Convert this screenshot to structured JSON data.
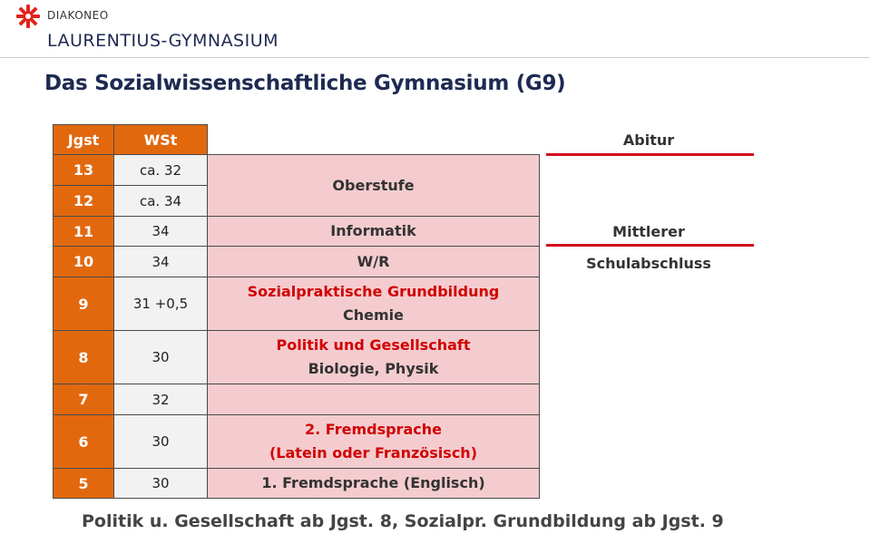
{
  "header": {
    "brand": "DIAKONEO",
    "school": "LAURENTIUS-GYMNASIUM",
    "accent_color": "#e2231a"
  },
  "title": "Das Sozialwissenschaftliche Gymnasium (G9)",
  "table": {
    "headers": {
      "jgst": "Jgst",
      "wst": "WSt"
    },
    "rows": [
      {
        "jgst": "13",
        "wst": "ca. 32"
      },
      {
        "jgst": "12",
        "wst": "ca. 34"
      },
      {
        "jgst": "11",
        "wst": "34"
      },
      {
        "jgst": "10",
        "wst": "34"
      },
      {
        "jgst": "9",
        "wst": "31 +0,5"
      },
      {
        "jgst": "8",
        "wst": "30"
      },
      {
        "jgst": "7",
        "wst": "32"
      },
      {
        "jgst": "6",
        "wst": "30"
      },
      {
        "jgst": "5",
        "wst": "30"
      }
    ],
    "subjects": {
      "oberstufe": "Oberstufe",
      "informatik": "Informatik",
      "wr": "W/R",
      "g9_red": "Sozialpraktische Grundbildung",
      "g9_dark": "Chemie",
      "g8_red": "Politik und Gesellschaft",
      "g8_dark": "Biologie, Physik",
      "g6_red1": "2. Fremdsprache",
      "g6_red2": "(Latein oder Französisch)",
      "g5": "1. Fremdsprache (Englisch)"
    }
  },
  "side": {
    "abitur": "Abitur",
    "mittlerer": "Mittlerer",
    "schulabschluss": "Schulabschluss",
    "line_color": "#d10e1d"
  },
  "footnote": "Politik u. Gesellschaft ab Jgst. 8, Sozialpr. Grundbildung ab Jgst. 9"
}
